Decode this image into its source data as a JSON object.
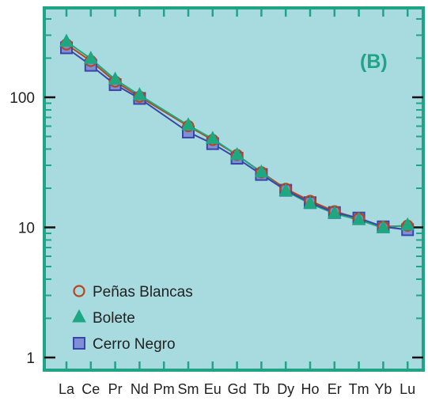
{
  "chart_data": {
    "type": "line",
    "panel_label": "(B)",
    "y_scale": "log",
    "ylim": [
      1,
      400
    ],
    "y_tick_labels": [
      "1",
      "10",
      "100"
    ],
    "grid": false,
    "legend_position": "bottom-left",
    "categories": [
      "La",
      "Ce",
      "Pr",
      "Nd",
      "Pm",
      "Sm",
      "Eu",
      "Gd",
      "Tb",
      "Dy",
      "Ho",
      "Er",
      "Tm",
      "Yb",
      "Lu"
    ],
    "series": [
      {
        "name": "Peñas Blancas",
        "marker": "open-circle",
        "color": "#b8451c",
        "values": [
          255,
          190,
          132,
          101,
          null,
          60,
          47,
          36,
          26.5,
          19.8,
          16,
          13.3,
          11.7,
          10.1,
          10.3
        ]
      },
      {
        "name": "Bolete",
        "marker": "triangle",
        "color": "#1ea882",
        "values": [
          268,
          198,
          137,
          104,
          null,
          61,
          48,
          36,
          26.5,
          19,
          15.2,
          12.8,
          11.4,
          9.9,
          10.4
        ]
      },
      {
        "name": "Cerro Negro",
        "marker": "square",
        "color": "#3a46a6",
        "fill": "#7f8ed8",
        "values": [
          240,
          176,
          125,
          98,
          null,
          54,
          44,
          34,
          25.5,
          19.3,
          15.5,
          13.0,
          11.8,
          10.1,
          9.6
        ]
      }
    ]
  },
  "colors": {
    "background": "#a8dbe0",
    "frame": "#20a486",
    "panel_label": "#20a486"
  }
}
